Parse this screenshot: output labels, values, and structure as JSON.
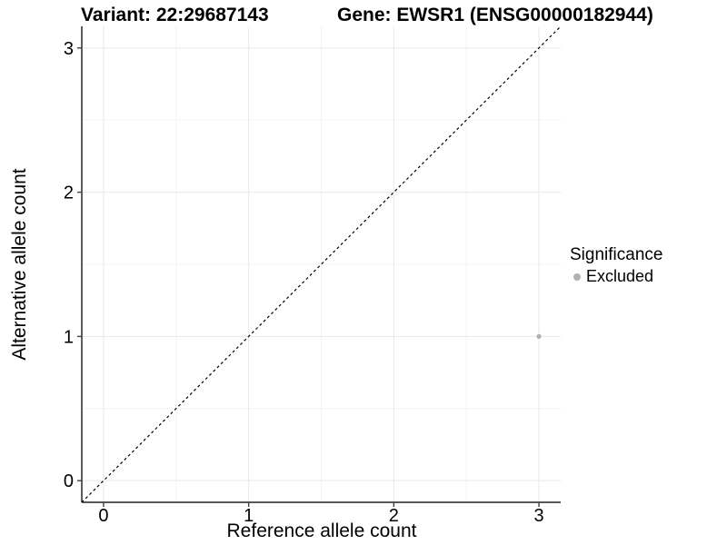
{
  "colors": {
    "background": "#ffffff",
    "grid_major": "#e8e8e8",
    "grid_minor": "#f3f3f3",
    "axis_line": "#404040",
    "identity_line": "#000000",
    "text": "#000000",
    "point": "#b0b0b0"
  },
  "chart_data": {
    "type": "scatter",
    "titles": {
      "variant": "Variant: 22:29687143",
      "gene": "Gene: EWSR1 (ENSG00000182944)"
    },
    "title": "Variant: 22:29687143  Gene: EWSR1 (ENSG00000182944)",
    "xlabel": "Reference allele count",
    "ylabel": "Alternative allele count",
    "xlim": [
      -0.15,
      3.15
    ],
    "ylim": [
      -0.15,
      3.15
    ],
    "x_ticks": [
      0,
      1,
      2,
      3
    ],
    "y_ticks": [
      0,
      1,
      2,
      3
    ],
    "x_minor_ticks": [
      0.5,
      1.5,
      2.5
    ],
    "y_minor_ticks": [
      0.5,
      1.5,
      2.5
    ],
    "grid": true,
    "legend_position": "right",
    "legend": {
      "title": "Significance",
      "items": [
        {
          "label": "Excluded",
          "color": "#b0b0b0"
        }
      ]
    },
    "series": [
      {
        "name": "Excluded",
        "color": "#b0b0b0",
        "points": [
          {
            "x": 3,
            "y": 1
          }
        ]
      }
    ],
    "reference_line": {
      "type": "identity",
      "style": "dashed",
      "color": "#000000",
      "from": [
        -0.15,
        -0.15
      ],
      "to": [
        3.15,
        3.15
      ]
    }
  }
}
